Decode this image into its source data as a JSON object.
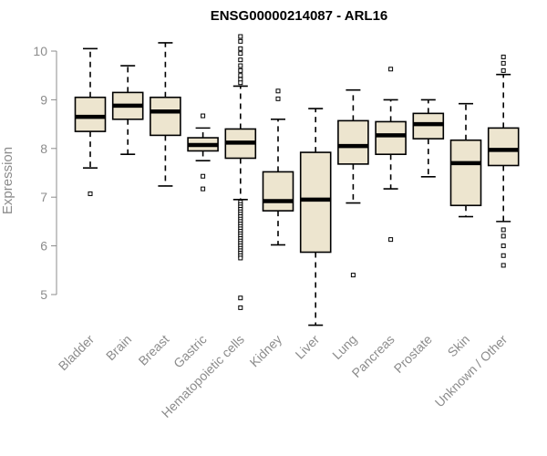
{
  "chart_data": {
    "type": "boxplot",
    "title": "ENSG00000214087 - ARL16",
    "xlabel": "",
    "ylabel": "Expression",
    "ylim": [
      4.4,
      10.3
    ],
    "yticks": [
      5,
      6,
      7,
      8,
      9,
      10
    ],
    "categories": [
      "Bladder",
      "Brain",
      "Breast",
      "Gastric",
      "Hematopoietic cells",
      "Kidney",
      "Liver",
      "Lung",
      "Pancreas",
      "Prostate",
      "Skin",
      "Unknown / Other"
    ],
    "boxes": [
      {
        "name": "Bladder",
        "whisker_low": 7.6,
        "q1": 8.35,
        "median": 8.65,
        "q3": 9.05,
        "whisker_high": 10.05,
        "outliers": [
          7.07
        ]
      },
      {
        "name": "Brain",
        "whisker_low": 7.88,
        "q1": 8.6,
        "median": 8.88,
        "q3": 9.15,
        "whisker_high": 9.7,
        "outliers": []
      },
      {
        "name": "Breast",
        "whisker_low": 7.23,
        "q1": 8.27,
        "median": 8.76,
        "q3": 9.05,
        "whisker_high": 10.17,
        "outliers": []
      },
      {
        "name": "Gastric",
        "whisker_low": 7.75,
        "q1": 7.95,
        "median": 8.07,
        "q3": 8.22,
        "whisker_high": 8.42,
        "outliers": [
          8.67,
          7.43,
          7.17
        ]
      },
      {
        "name": "Hematopoietic cells",
        "whisker_low": 6.95,
        "q1": 7.8,
        "median": 8.12,
        "q3": 8.4,
        "whisker_high": 9.28,
        "outliers": [
          10.3,
          10.2,
          10.05,
          9.95,
          9.82,
          9.7,
          9.6,
          9.5,
          9.42,
          9.35,
          6.9,
          6.85,
          6.8,
          6.75,
          6.7,
          6.65,
          6.6,
          6.55,
          6.5,
          6.45,
          6.4,
          6.35,
          6.3,
          6.25,
          6.2,
          6.15,
          6.1,
          6.05,
          6.0,
          5.95,
          5.9,
          5.85,
          5.8,
          5.75,
          4.93,
          4.73
        ]
      },
      {
        "name": "Kidney",
        "whisker_low": 6.02,
        "q1": 6.72,
        "median": 6.92,
        "q3": 7.52,
        "whisker_high": 8.6,
        "outliers": [
          9.18,
          9.02
        ]
      },
      {
        "name": "Liver",
        "whisker_low": 4.37,
        "q1": 5.87,
        "median": 6.95,
        "q3": 7.92,
        "whisker_high": 8.82,
        "outliers": []
      },
      {
        "name": "Lung",
        "whisker_low": 6.88,
        "q1": 7.68,
        "median": 8.05,
        "q3": 8.57,
        "whisker_high": 9.2,
        "outliers": [
          5.4
        ]
      },
      {
        "name": "Pancreas",
        "whisker_low": 7.17,
        "q1": 7.88,
        "median": 8.27,
        "q3": 8.55,
        "whisker_high": 9.0,
        "outliers": [
          9.63,
          6.13
        ]
      },
      {
        "name": "Prostate",
        "whisker_low": 7.42,
        "q1": 8.2,
        "median": 8.5,
        "q3": 8.72,
        "whisker_high": 9.0,
        "outliers": []
      },
      {
        "name": "Skin",
        "whisker_low": 6.6,
        "q1": 6.83,
        "median": 7.7,
        "q3": 8.17,
        "whisker_high": 8.92,
        "outliers": []
      },
      {
        "name": "Unknown / Other",
        "whisker_low": 6.5,
        "q1": 7.65,
        "median": 7.97,
        "q3": 8.42,
        "whisker_high": 9.52,
        "outliers": [
          9.88,
          9.75,
          9.6,
          6.33,
          6.2,
          6.0,
          5.8,
          5.6
        ]
      }
    ],
    "box_fill": "#ede5cf",
    "box_stroke": "#000000",
    "axis_color": "#8c8c8c",
    "grid": false
  }
}
